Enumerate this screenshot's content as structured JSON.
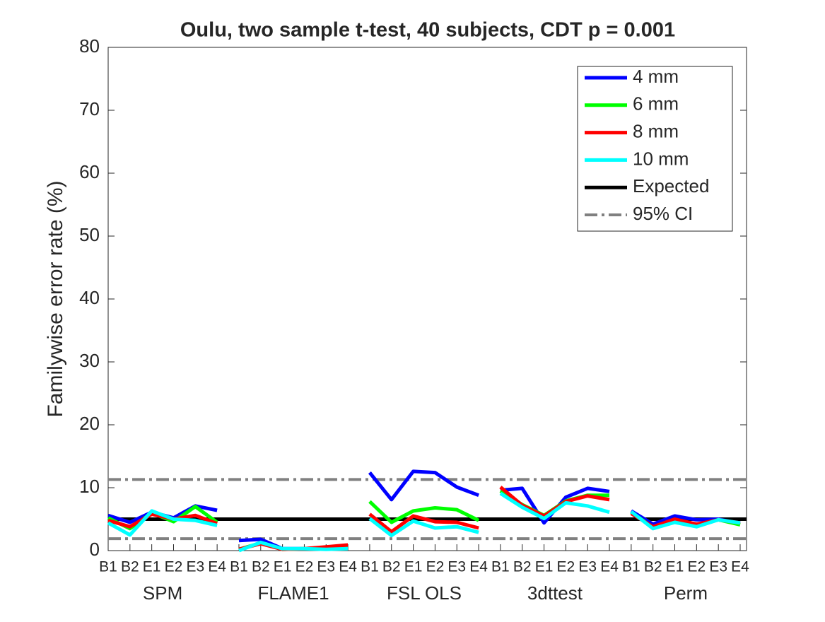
{
  "chart_data": {
    "type": "line",
    "title": "Oulu, two sample t-test, 40 subjects, CDT p = 0.001",
    "y_label": "Familywise error rate (%)",
    "categories": [
      "B1",
      "B2",
      "E1",
      "E2",
      "E3",
      "E4",
      "B1",
      "B2",
      "E1",
      "E2",
      "E3",
      "E4",
      "B1",
      "B2",
      "E1",
      "E2",
      "E3",
      "E4",
      "B1",
      "B2",
      "E1",
      "E2",
      "E3",
      "E4",
      "B1",
      "B2",
      "E1",
      "E2",
      "E3",
      "E4"
    ],
    "groups": [
      "SPM",
      "FLAME1",
      "FSL OLS",
      "3dttest",
      "Perm"
    ],
    "series": [
      {
        "name": "4 mm",
        "color": "#0000ff",
        "values": [
          5.6,
          4.5,
          6.1,
          5.2,
          7.1,
          6.4,
          1.6,
          1.8,
          0.3,
          0.3,
          0.5,
          0.7,
          12.4,
          8.1,
          12.6,
          12.4,
          10.1,
          8.8,
          9.6,
          9.9,
          4.4,
          8.5,
          9.9,
          9.4,
          6.3,
          4.2,
          5.5,
          4.9,
          5.0,
          4.3
        ]
      },
      {
        "name": "6 mm",
        "color": "#00ff00",
        "values": [
          5.2,
          3.5,
          6.0,
          4.6,
          7.0,
          4.5,
          0.2,
          1.2,
          0.2,
          0.3,
          0.4,
          0.6,
          7.8,
          4.5,
          6.3,
          6.8,
          6.5,
          4.8,
          9.5,
          7.3,
          5.6,
          7.9,
          8.8,
          8.8,
          6.1,
          3.7,
          4.8,
          4.1,
          4.9,
          4.1
        ]
      },
      {
        "name": "8 mm",
        "color": "#ff0000",
        "values": [
          4.8,
          3.8,
          5.8,
          5.0,
          5.6,
          4.3,
          0.2,
          1.1,
          0.2,
          0.3,
          0.6,
          0.9,
          5.8,
          3.0,
          5.5,
          4.6,
          4.5,
          3.6,
          10.1,
          7.2,
          5.5,
          7.8,
          8.7,
          8.1,
          5.9,
          3.8,
          5.0,
          4.2,
          4.9,
          4.4
        ]
      },
      {
        "name": "10 mm",
        "color": "#00ffff",
        "values": [
          4.4,
          2.5,
          6.3,
          5.0,
          4.8,
          4.0,
          0.0,
          1.3,
          0.3,
          0.3,
          0.2,
          0.3,
          5.1,
          2.4,
          4.7,
          3.6,
          3.8,
          2.9,
          9.1,
          6.9,
          5.1,
          7.6,
          7.1,
          6.1,
          6.2,
          3.5,
          4.5,
          3.8,
          4.9,
          4.4
        ]
      }
    ],
    "reference_lines": [
      {
        "name": "Expected",
        "color": "#000000",
        "dashed": false,
        "values": [
          5
        ]
      },
      {
        "name": "95% CI",
        "color": "#808080",
        "dashed": true,
        "values": [
          11.3,
          1.9
        ]
      }
    ],
    "ylim": [
      0,
      80
    ],
    "yticks": [
      0,
      10,
      20,
      30,
      40,
      50,
      60,
      70,
      80
    ],
    "legend": "top-right"
  }
}
